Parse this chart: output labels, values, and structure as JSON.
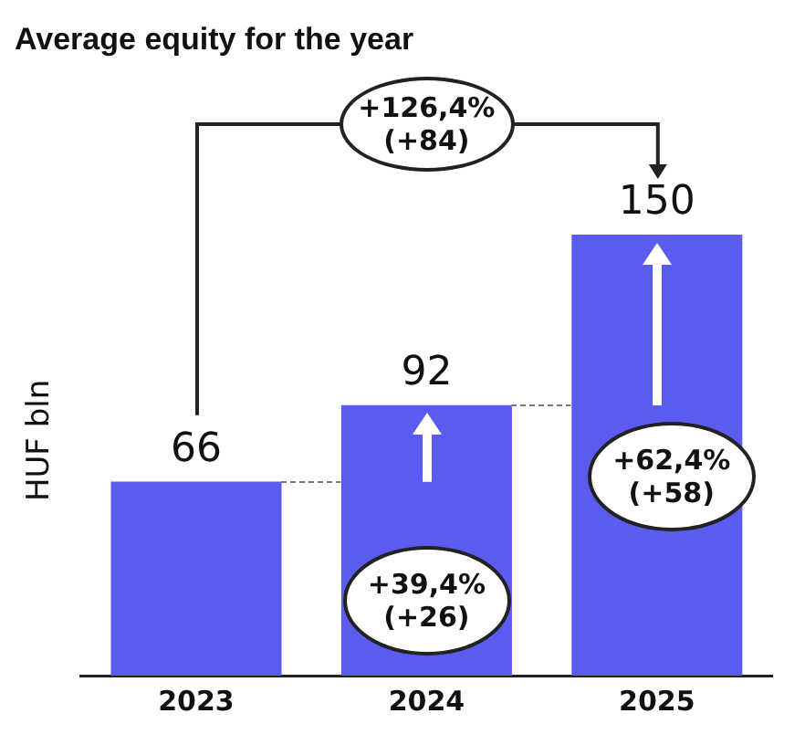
{
  "chart_data": {
    "type": "bar",
    "title": "Average equity for the year",
    "ylabel": "HUF bln",
    "categories": [
      "2023",
      "2024",
      "2025"
    ],
    "values": [
      66,
      92,
      150
    ],
    "color": "#5b5bf0",
    "data_labels": true,
    "grid": false,
    "legend": false,
    "annotations": [
      "+126,4%\n(+84)",
      "+39,4%\n(+26)",
      "+62,4%\n(+58)"
    ]
  }
}
